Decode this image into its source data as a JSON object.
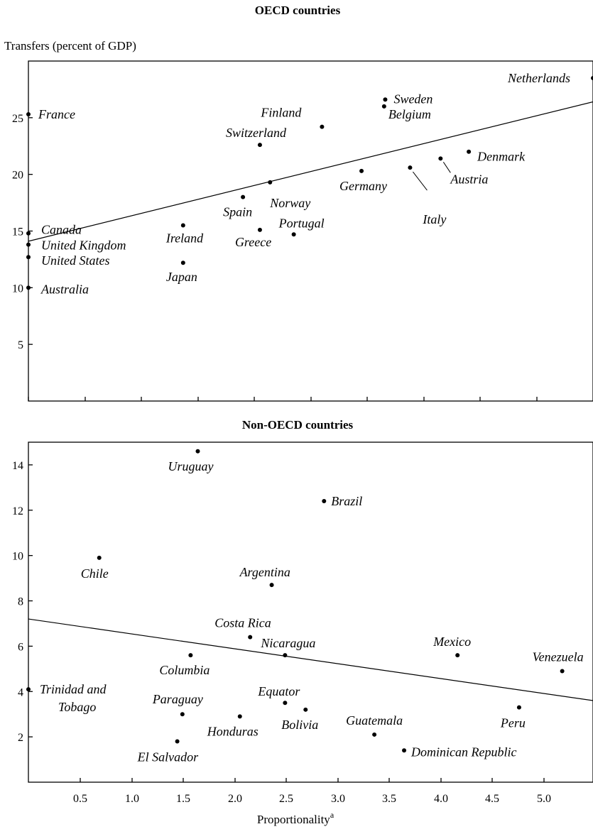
{
  "chart_data": [
    {
      "type": "scatter",
      "title": "OECD countries",
      "ylabel": "Transfers (percent of GDP)",
      "xlabel": "",
      "xlim": [
        0,
        5
      ],
      "ylim": [
        0,
        30
      ],
      "y_ticks": [
        "5",
        "10",
        "15",
        "20",
        "25"
      ],
      "grid": false,
      "trend_line": {
        "from": [
          0,
          14.1
        ],
        "to": [
          5,
          26.4
        ]
      },
      "points": [
        {
          "label": "Netherlands",
          "x": 5.0,
          "y": 28.5
        },
        {
          "label": "France",
          "x": 0.0,
          "y": 25.3
        },
        {
          "label": "Sweden",
          "x": 3.16,
          "y": 26.6
        },
        {
          "label": "Belgium",
          "x": 3.15,
          "y": 26.0
        },
        {
          "label": "Finland",
          "x": 2.6,
          "y": 24.2
        },
        {
          "label": "Switzerland",
          "x": 2.05,
          "y": 22.6
        },
        {
          "label": "Denmark",
          "x": 3.9,
          "y": 22.0
        },
        {
          "label": "Austria",
          "x": 3.65,
          "y": 21.4
        },
        {
          "label": "Italy",
          "x": 3.38,
          "y": 20.6
        },
        {
          "label": "Germany",
          "x": 2.95,
          "y": 20.3
        },
        {
          "label": "Norway",
          "x": 2.14,
          "y": 19.3
        },
        {
          "label": "Spain",
          "x": 1.9,
          "y": 18.0
        },
        {
          "label": "Ireland",
          "x": 1.37,
          "y": 15.5
        },
        {
          "label": "Greece",
          "x": 2.05,
          "y": 15.1
        },
        {
          "label": "Portugal",
          "x": 2.35,
          "y": 14.7
        },
        {
          "label": "Canada",
          "x": 0.0,
          "y": 14.8
        },
        {
          "label": "United Kingdom",
          "x": 0.0,
          "y": 13.8
        },
        {
          "label": "United States",
          "x": 0.0,
          "y": 12.7
        },
        {
          "label": "Japan",
          "x": 1.37,
          "y": 12.2
        },
        {
          "label": "Australia",
          "x": 0.0,
          "y": 10.0
        }
      ]
    },
    {
      "type": "scatter",
      "title": "Non-OECD countries",
      "ylabel": "",
      "xlabel": "Proportionality",
      "xlabel_superscript": "a",
      "xlim": [
        0,
        5.5
      ],
      "ylim": [
        0,
        15
      ],
      "x_ticks": [
        "0.5",
        "1.0",
        "1.5",
        "2.0",
        "2.5",
        "3.0",
        "3.5",
        "4.0",
        "4.5",
        "5.0"
      ],
      "y_ticks": [
        "2",
        "4",
        "6",
        "8",
        "10",
        "12",
        "14"
      ],
      "grid": false,
      "trend_line": {
        "from": [
          0,
          7.2
        ],
        "to": [
          5.5,
          3.6
        ]
      },
      "points": [
        {
          "label": "Uruguay",
          "x": 1.65,
          "y": 14.6
        },
        {
          "label": "Brazil",
          "x": 2.88,
          "y": 12.4
        },
        {
          "label": "Chile",
          "x": 0.69,
          "y": 9.9
        },
        {
          "label": "Argentina",
          "x": 2.37,
          "y": 8.7
        },
        {
          "label": "Costa Rica",
          "x": 2.16,
          "y": 6.4
        },
        {
          "label": "Nicaragua",
          "x": 2.5,
          "y": 5.6
        },
        {
          "label": "Columbia",
          "x": 1.58,
          "y": 5.6
        },
        {
          "label": "Mexico",
          "x": 4.18,
          "y": 5.6
        },
        {
          "label": "Venezuela",
          "x": 5.2,
          "y": 4.9
        },
        {
          "label": "Trinidad and Tobago",
          "x": 0.0,
          "y": 4.1
        },
        {
          "label": "Equator",
          "x": 2.5,
          "y": 3.5
        },
        {
          "label": "Paraguay",
          "x": 1.5,
          "y": 3.0
        },
        {
          "label": "Honduras",
          "x": 2.06,
          "y": 2.9
        },
        {
          "label": "Bolivia",
          "x": 2.7,
          "y": 3.2
        },
        {
          "label": "Peru",
          "x": 4.78,
          "y": 3.3
        },
        {
          "label": "Guatemala",
          "x": 3.37,
          "y": 2.1
        },
        {
          "label": "El Salvador",
          "x": 1.45,
          "y": 1.8
        },
        {
          "label": "Dominican Republic",
          "x": 3.66,
          "y": 1.4
        }
      ]
    }
  ]
}
